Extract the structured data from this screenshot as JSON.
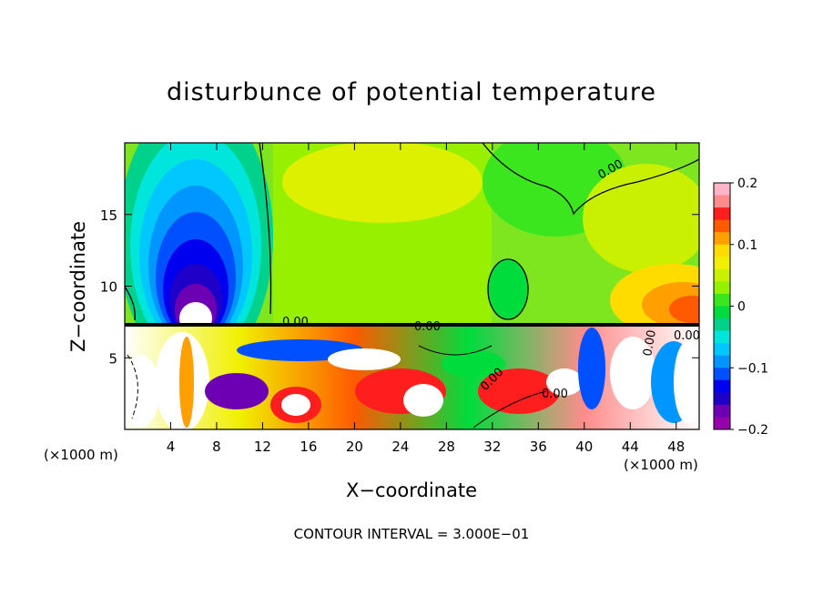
{
  "chart_data": {
    "type": "heatmap",
    "title": "disturbunce of potential temperature",
    "xlabel": "X−coordinate",
    "ylabel": "Z−coordinate",
    "x_unit": "(×1000 m)",
    "footer": "CONTOUR INTERVAL = 3.000E−01",
    "xlim": [
      0,
      50
    ],
    "ylim": [
      0,
      20
    ],
    "x_ticks": [
      "4",
      "8",
      "12",
      "16",
      "20",
      "24",
      "28",
      "32",
      "36",
      "40",
      "44",
      "48"
    ],
    "x_tick_values": [
      4,
      8,
      12,
      16,
      20,
      24,
      28,
      32,
      36,
      40,
      44,
      48
    ],
    "y_ticks": [
      "5",
      "10",
      "15"
    ],
    "y_tick_values": [
      5,
      10,
      15
    ],
    "colorbar": {
      "range": [
        -0.2,
        0.2
      ],
      "tick_labels": [
        "0.2",
        "0.1",
        "0",
        "−0.1",
        "−0.2"
      ],
      "tick_values": [
        0.2,
        0.1,
        0,
        -0.1,
        -0.2
      ],
      "colors": [
        "#ffb4c8",
        "#ff8c8c",
        "#ff1e1e",
        "#ff5a00",
        "#ffa000",
        "#ffdc00",
        "#f0f000",
        "#c8f000",
        "#96f000",
        "#3ce61e",
        "#00dc3c",
        "#00d28c",
        "#00e6dc",
        "#00c8ff",
        "#0096ff",
        "#0050ff",
        "#0000f0",
        "#1e00c8",
        "#6e00b4",
        "#9600aa"
      ]
    },
    "contour_labels": [
      "0.00",
      "0.00",
      "0.00",
      "0.00",
      "0.00",
      "0.00",
      "0.00"
    ],
    "features": [
      {
        "name": "cold anomaly",
        "x_center": 6,
        "z_range": [
          10,
          19
        ],
        "min_value": -0.2
      },
      {
        "name": "warm anomaly",
        "x_center": 47,
        "z_range": [
          8,
          11
        ],
        "max_value": 0.15
      }
    ]
  }
}
